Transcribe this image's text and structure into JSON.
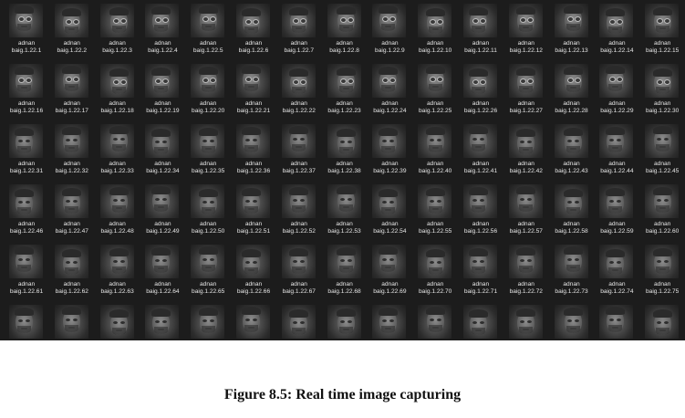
{
  "explorer": {
    "files": [
      {
        "line1": "adnan",
        "line2": "baig.1.22.1"
      },
      {
        "line1": "adnan",
        "line2": "baig.1.22.2"
      },
      {
        "line1": "adnan",
        "line2": "baig.1.22.3"
      },
      {
        "line1": "adnan",
        "line2": "baig.1.22.4"
      },
      {
        "line1": "adnan",
        "line2": "baig.1.22.5"
      },
      {
        "line1": "adnan",
        "line2": "baig.1.22.6"
      },
      {
        "line1": "adnan",
        "line2": "baig.1.22.7"
      },
      {
        "line1": "adnan",
        "line2": "baig.1.22.8"
      },
      {
        "line1": "adnan",
        "line2": "baig.1.22.9"
      },
      {
        "line1": "adnan",
        "line2": "baig.1.22.10"
      },
      {
        "line1": "adnan",
        "line2": "baig.1.22.11"
      },
      {
        "line1": "adnan",
        "line2": "baig.1.22.12"
      },
      {
        "line1": "adnan",
        "line2": "baig.1.22.13"
      },
      {
        "line1": "adnan",
        "line2": "baig.1.22.14"
      },
      {
        "line1": "adnan",
        "line2": "baig.1.22.15"
      },
      {
        "line1": "adnan",
        "line2": "baig.1.22.16"
      },
      {
        "line1": "adnan",
        "line2": "baig.1.22.17"
      },
      {
        "line1": "adnan",
        "line2": "baig.1.22.18"
      },
      {
        "line1": "adnan",
        "line2": "baig.1.22.19"
      },
      {
        "line1": "adnan",
        "line2": "baig.1.22.20"
      },
      {
        "line1": "adnan",
        "line2": "baig.1.22.21"
      },
      {
        "line1": "adnan",
        "line2": "baig.1.22.22"
      },
      {
        "line1": "adnan",
        "line2": "baig.1.22.23"
      },
      {
        "line1": "adnan",
        "line2": "baig.1.22.24"
      },
      {
        "line1": "adnan",
        "line2": "baig.1.22.25"
      },
      {
        "line1": "adnan",
        "line2": "baig.1.22.26"
      },
      {
        "line1": "adnan",
        "line2": "baig.1.22.27"
      },
      {
        "line1": "adnan",
        "line2": "baig.1.22.28"
      },
      {
        "line1": "adnan",
        "line2": "baig.1.22.29"
      },
      {
        "line1": "adnan",
        "line2": "baig.1.22.30"
      },
      {
        "line1": "adnan",
        "line2": "baig.1.22.31"
      },
      {
        "line1": "adnan",
        "line2": "baig.1.22.32"
      },
      {
        "line1": "adnan",
        "line2": "baig.1.22.33"
      },
      {
        "line1": "adnan",
        "line2": "baig.1.22.34"
      },
      {
        "line1": "adnan",
        "line2": "baig.1.22.35"
      },
      {
        "line1": "adnan",
        "line2": "baig.1.22.36"
      },
      {
        "line1": "adnan",
        "line2": "baig.1.22.37"
      },
      {
        "line1": "adnan",
        "line2": "baig.1.22.38"
      },
      {
        "line1": "adnan",
        "line2": "baig.1.22.39"
      },
      {
        "line1": "adnan",
        "line2": "baig.1.22.40"
      },
      {
        "line1": "adnan",
        "line2": "baig.1.22.41"
      },
      {
        "line1": "adnan",
        "line2": "baig.1.22.42"
      },
      {
        "line1": "adnan",
        "line2": "baig.1.22.43"
      },
      {
        "line1": "adnan",
        "line2": "baig.1.22.44"
      },
      {
        "line1": "adnan",
        "line2": "baig.1.22.45"
      },
      {
        "line1": "adnan",
        "line2": "baig.1.22.46"
      },
      {
        "line1": "adnan",
        "line2": "baig.1.22.47"
      },
      {
        "line1": "adnan",
        "line2": "baig.1.22.48"
      },
      {
        "line1": "adnan",
        "line2": "baig.1.22.49"
      },
      {
        "line1": "adnan",
        "line2": "baig.1.22.50"
      },
      {
        "line1": "adnan",
        "line2": "baig.1.22.51"
      },
      {
        "line1": "adnan",
        "line2": "baig.1.22.52"
      },
      {
        "line1": "adnan",
        "line2": "baig.1.22.53"
      },
      {
        "line1": "adnan",
        "line2": "baig.1.22.54"
      },
      {
        "line1": "adnan",
        "line2": "baig.1.22.55"
      },
      {
        "line1": "adnan",
        "line2": "baig.1.22.56"
      },
      {
        "line1": "adnan",
        "line2": "baig.1.22.57"
      },
      {
        "line1": "adnan",
        "line2": "baig.1.22.58"
      },
      {
        "line1": "adnan",
        "line2": "baig.1.22.59"
      },
      {
        "line1": "adnan",
        "line2": "baig.1.22.60"
      },
      {
        "line1": "adnan",
        "line2": "baig.1.22.61"
      },
      {
        "line1": "adnan",
        "line2": "baig.1.22.62"
      },
      {
        "line1": "adnan",
        "line2": "baig.1.22.63"
      },
      {
        "line1": "adnan",
        "line2": "baig.1.22.64"
      },
      {
        "line1": "adnan",
        "line2": "baig.1.22.65"
      },
      {
        "line1": "adnan",
        "line2": "baig.1.22.66"
      },
      {
        "line1": "adnan",
        "line2": "baig.1.22.67"
      },
      {
        "line1": "adnan",
        "line2": "baig.1.22.68"
      },
      {
        "line1": "adnan",
        "line2": "baig.1.22.69"
      },
      {
        "line1": "adnan",
        "line2": "baig.1.22.70"
      },
      {
        "line1": "adnan",
        "line2": "baig.1.22.71"
      },
      {
        "line1": "adnan",
        "line2": "baig.1.22.72"
      },
      {
        "line1": "adnan",
        "line2": "baig.1.22.73"
      },
      {
        "line1": "adnan",
        "line2": "baig.1.22.74"
      },
      {
        "line1": "adnan",
        "line2": "baig.1.22.75"
      },
      {
        "line1": "",
        "line2": ""
      },
      {
        "line1": "",
        "line2": ""
      },
      {
        "line1": "",
        "line2": ""
      },
      {
        "line1": "",
        "line2": ""
      },
      {
        "line1": "",
        "line2": ""
      },
      {
        "line1": "",
        "line2": ""
      },
      {
        "line1": "",
        "line2": ""
      },
      {
        "line1": "",
        "line2": ""
      },
      {
        "line1": "",
        "line2": ""
      },
      {
        "line1": "",
        "line2": ""
      },
      {
        "line1": "",
        "line2": ""
      },
      {
        "line1": "",
        "line2": ""
      },
      {
        "line1": "",
        "line2": ""
      },
      {
        "line1": "",
        "line2": ""
      },
      {
        "line1": "",
        "line2": ""
      }
    ]
  },
  "caption": {
    "text": "Figure 8.5: Real time image capturing"
  }
}
